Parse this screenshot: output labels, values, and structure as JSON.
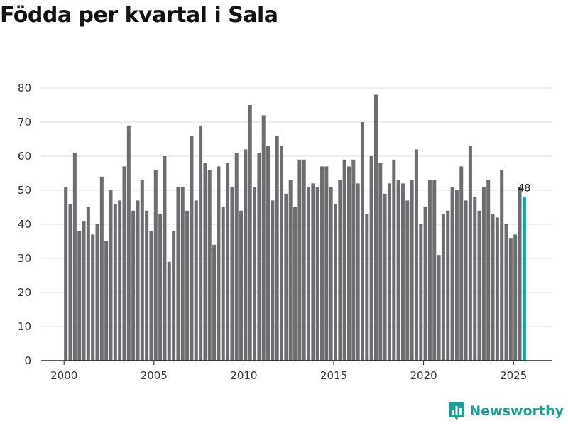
{
  "chart_data": {
    "type": "bar",
    "title": "Födda per kvartal i Sala",
    "xlabel": "",
    "ylabel": "",
    "x_ticks": [
      "2000",
      "2005",
      "2010",
      "2015",
      "2020",
      "2025"
    ],
    "y_ticks": [
      "0",
      "10",
      "20",
      "30",
      "40",
      "50",
      "60",
      "70",
      "80"
    ],
    "ylim": [
      0,
      80
    ],
    "grid": true,
    "start": "2000 Q1",
    "frequency": "quarterly",
    "values": [
      51,
      46,
      61,
      38,
      41,
      45,
      37,
      40,
      54,
      35,
      50,
      46,
      47,
      57,
      69,
      44,
      47,
      53,
      44,
      38,
      56,
      43,
      60,
      29,
      38,
      51,
      51,
      44,
      66,
      47,
      69,
      58,
      56,
      34,
      57,
      45,
      58,
      51,
      61,
      44,
      62,
      75,
      51,
      61,
      72,
      63,
      47,
      66,
      63,
      49,
      53,
      45,
      59,
      59,
      51,
      52,
      51,
      57,
      57,
      51,
      46,
      53,
      59,
      57,
      59,
      52,
      70,
      43,
      60,
      78,
      58,
      49,
      52,
      59,
      53,
      52,
      47,
      53,
      62,
      40,
      45,
      53,
      53,
      31,
      43,
      44,
      51,
      50,
      57,
      47,
      63,
      48,
      44,
      51,
      53,
      43,
      42,
      56,
      40,
      36,
      37,
      51,
      48
    ],
    "highlight_label": "48",
    "colors": {
      "bar": "#6d6c70",
      "highlight": "#1e9e95",
      "grid": "#dddddd",
      "axis": "#222222"
    }
  },
  "branding": {
    "name": "Newsworthy",
    "icon": "bar-chart-icon",
    "color": "#1e9e95"
  }
}
